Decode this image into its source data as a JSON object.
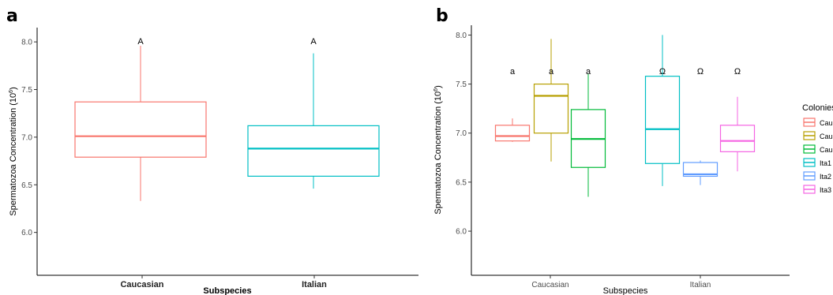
{
  "panels": [
    {
      "letter": "a"
    },
    {
      "letter": "b"
    }
  ],
  "chart_data": [
    {
      "type": "box",
      "panel": "a",
      "xlabel": "Subspecies",
      "ylabel": "Spermatozoa Concentration (10",
      "ylabel_sup": "6",
      "ylabel_close": ")",
      "ylim": [
        5.55,
        8.15
      ],
      "yticks": [
        "6.0",
        "6.5",
        "7.0",
        "7.5",
        "8.0"
      ],
      "categories": [
        "Caucasian",
        "Italian"
      ],
      "boxes": [
        {
          "category": "Caucasian",
          "color": "#F8766D",
          "min": 6.33,
          "q1": 6.79,
          "median": 7.01,
          "q3": 7.37,
          "max": 7.96,
          "annotation": "A"
        },
        {
          "category": "Italian",
          "color": "#00BFC4",
          "min": 6.46,
          "q1": 6.59,
          "median": 6.88,
          "q3": 7.12,
          "max": 7.88,
          "annotation": "A"
        }
      ],
      "grid": false
    },
    {
      "type": "box",
      "panel": "b",
      "xlabel": "Subspecies",
      "ylabel": "Spermatozoa Concentration (10",
      "ylabel_sup": "6",
      "ylabel_close": ")",
      "ylim": [
        5.55,
        8.1
      ],
      "yticks": [
        "6.0",
        "6.5",
        "7.0",
        "7.5",
        "8.0"
      ],
      "categories": [
        "Caucasian",
        "Italian"
      ],
      "legend_title": "Colonies",
      "legend_position": "right",
      "series": [
        {
          "name": "Cau",
          "category": "Caucasian",
          "color": "#F8766D",
          "min": 6.91,
          "q1": 6.92,
          "median": 6.97,
          "q3": 7.08,
          "max": 7.15,
          "annotation": "a"
        },
        {
          "name": "Cau",
          "category": "Caucasian",
          "color": "#B79F00",
          "min": 6.71,
          "q1": 7.0,
          "median": 7.38,
          "q3": 7.5,
          "max": 7.96,
          "annotation": "a"
        },
        {
          "name": "Cau",
          "category": "Caucasian",
          "color": "#00BA38",
          "min": 6.35,
          "q1": 6.65,
          "median": 6.94,
          "q3": 7.24,
          "max": 7.61,
          "annotation": "a"
        },
        {
          "name": "Ita1",
          "category": "Italian",
          "color": "#00BFC4",
          "min": 6.46,
          "q1": 6.69,
          "median": 7.04,
          "q3": 7.58,
          "max": 8.0,
          "annotation": "Ω"
        },
        {
          "name": "Ita2",
          "category": "Italian",
          "color": "#619CFF",
          "min": 6.47,
          "q1": 6.56,
          "median": 6.58,
          "q3": 6.7,
          "max": 6.72,
          "annotation": "Ω"
        },
        {
          "name": "Ita3",
          "category": "Italian",
          "color": "#F564E3",
          "min": 6.61,
          "q1": 6.81,
          "median": 6.92,
          "q3": 7.08,
          "max": 7.37,
          "annotation": "Ω"
        }
      ],
      "grid": false
    }
  ]
}
